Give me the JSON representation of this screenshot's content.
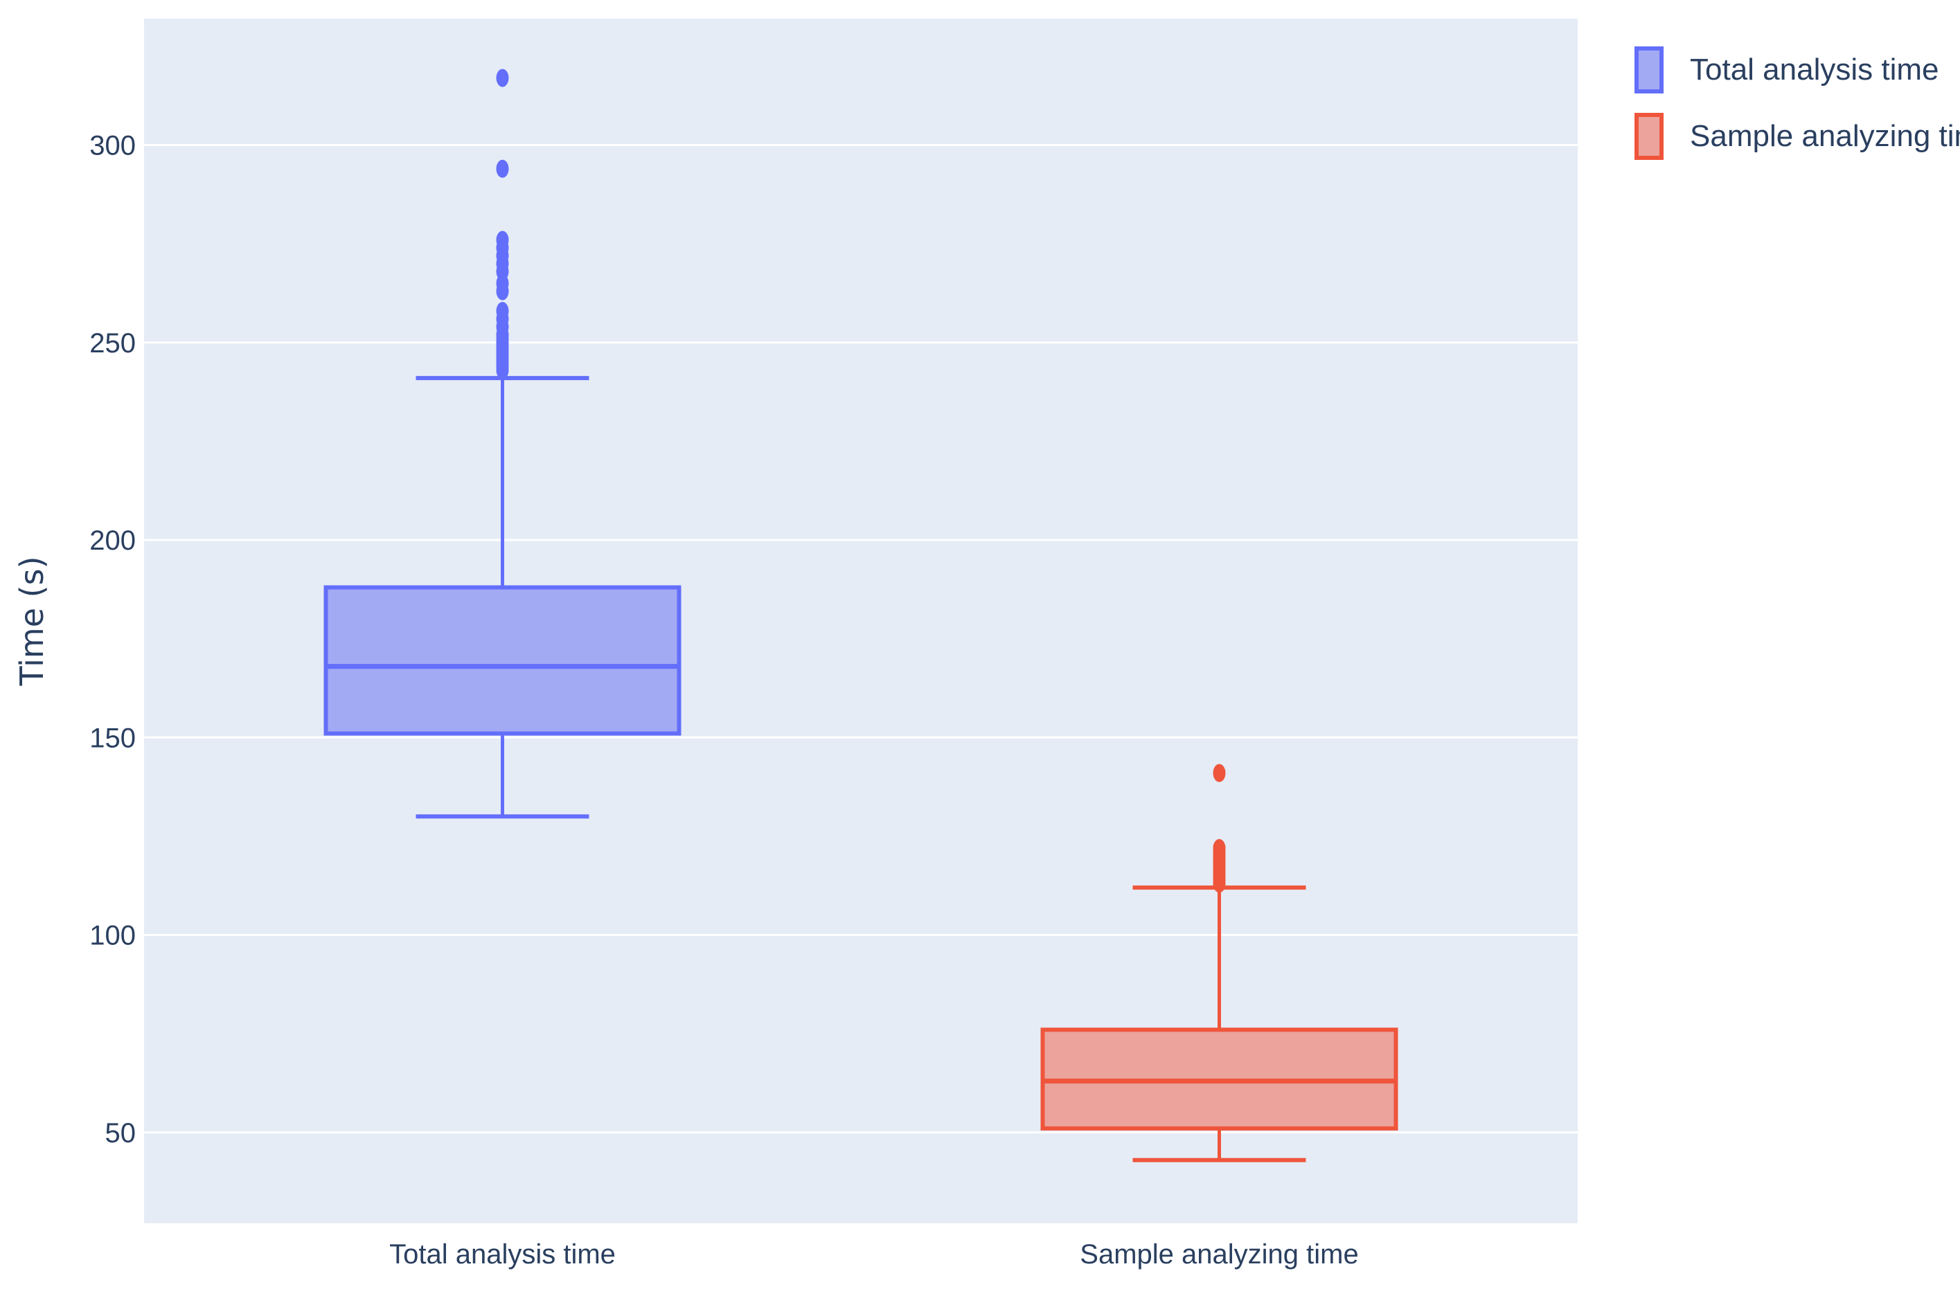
{
  "chart_data": {
    "type": "box",
    "title": "",
    "ylabel": "Time (s)",
    "xlabel": "",
    "ylim": [
      27,
      332
    ],
    "yticks": [
      50,
      100,
      150,
      200,
      250,
      300
    ],
    "grid": true,
    "legend_position": "top-right",
    "background": "#e5ecf6",
    "series": [
      {
        "name": "Total analysis time",
        "category": "Total analysis time",
        "color": "#636efa",
        "fill": "#a3aaf4",
        "min": 130,
        "q1": 151,
        "median": 168,
        "q3": 188,
        "max": 241,
        "outliers": [
          243,
          244,
          245,
          246,
          247,
          248,
          249,
          250,
          251,
          252,
          254,
          256,
          258,
          263,
          265,
          268,
          270,
          272,
          274,
          276,
          294,
          317
        ]
      },
      {
        "name": "Sample analyzing time",
        "category": "Sample analyzing time",
        "color": "#ef553b",
        "fill": "#eba39c",
        "min": 43,
        "q1": 51,
        "median": 63,
        "q3": 76,
        "max": 112,
        "outliers": [
          113,
          114,
          115,
          116,
          117,
          118,
          119,
          120,
          121,
          122,
          141
        ]
      }
    ]
  }
}
